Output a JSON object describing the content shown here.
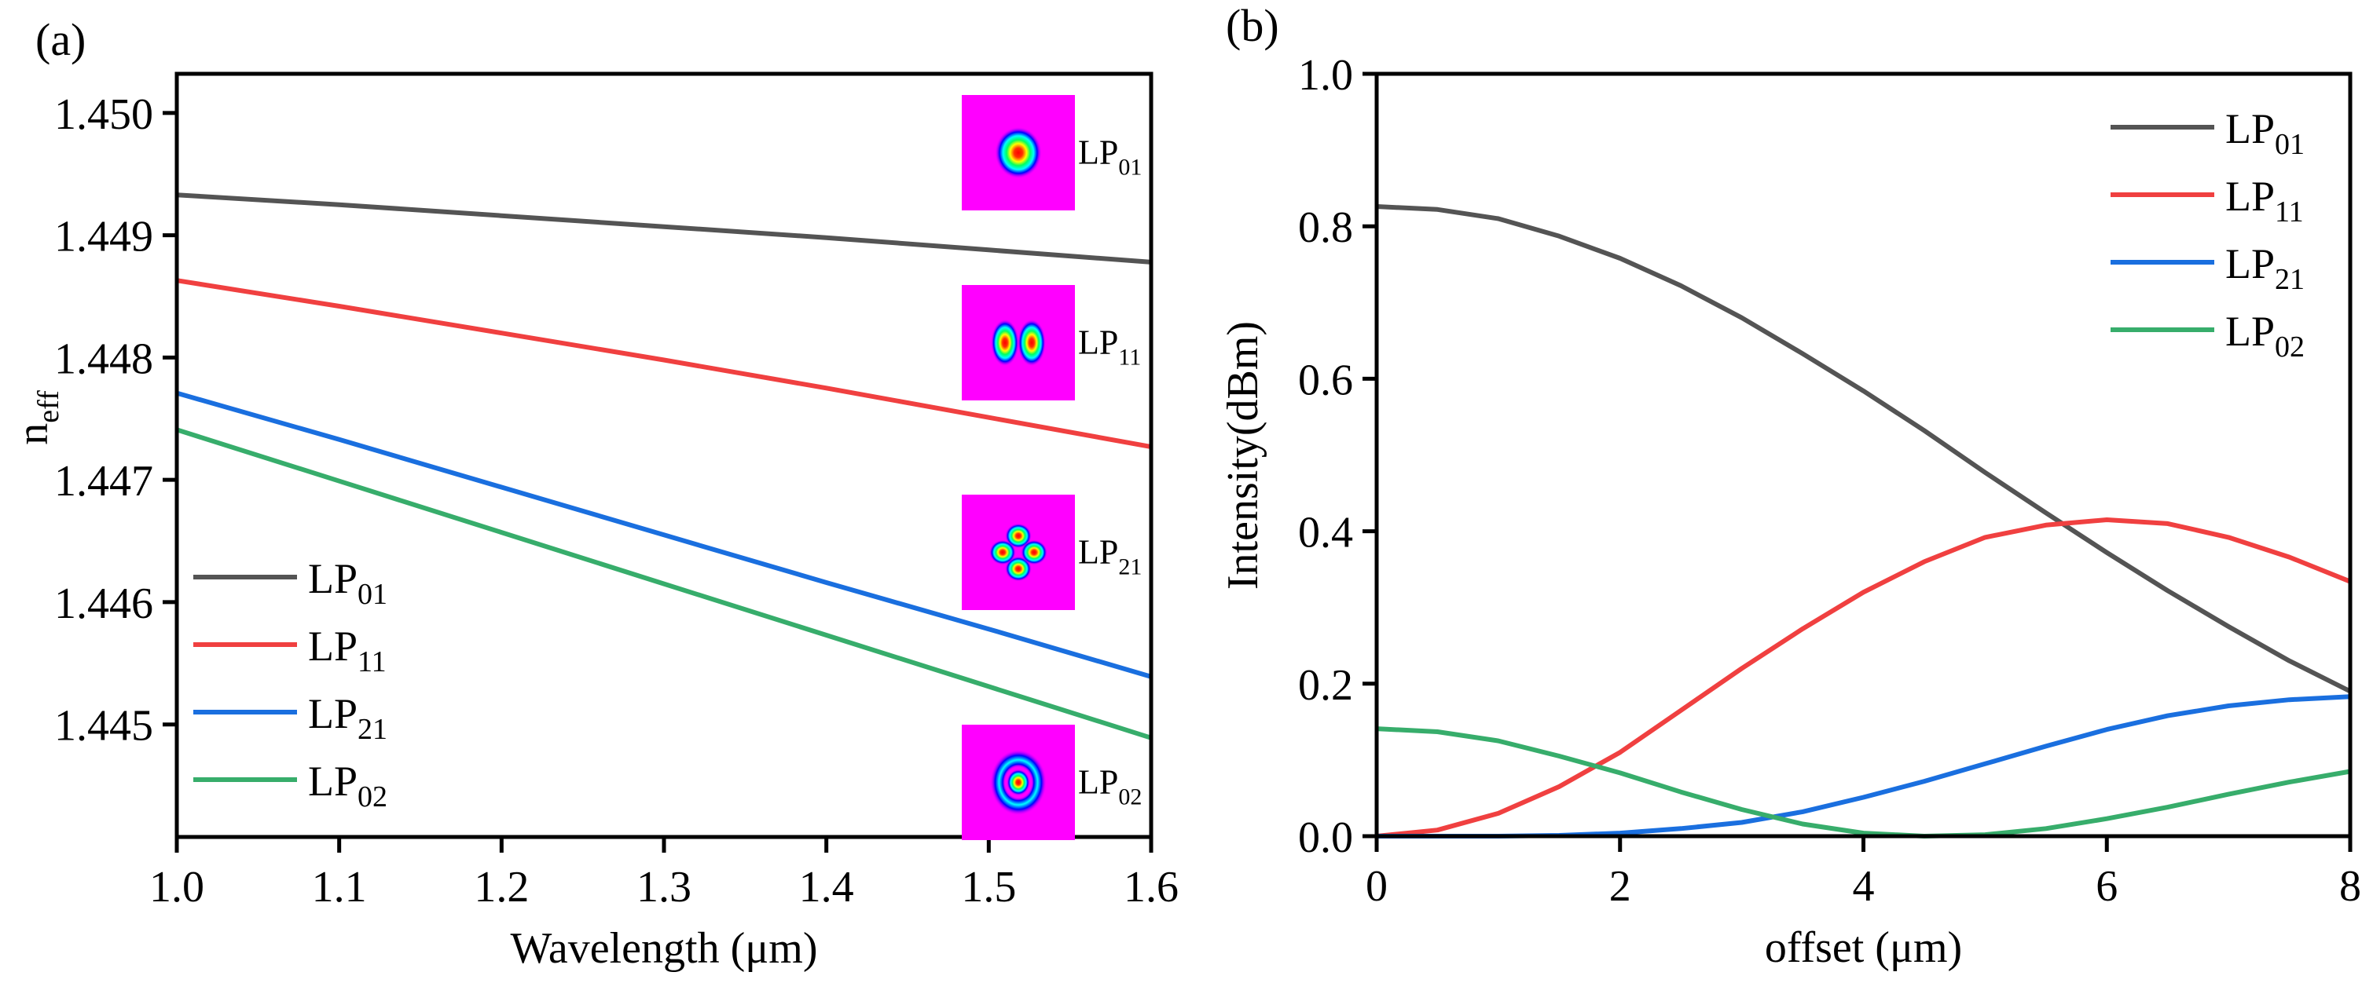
{
  "chart_data": [
    {
      "panel_label": "(a)",
      "type": "line",
      "title": "",
      "xlabel": "Wavelength (μm)",
      "ylabel": "n",
      "ylabel_sub": "eff",
      "xlim": [
        1.0,
        1.6
      ],
      "ylim": [
        1.44408,
        1.45032
      ],
      "xticks": [
        "1.0",
        "1.1",
        "1.2",
        "1.3",
        "1.4",
        "1.5",
        "1.6"
      ],
      "yticks": [
        "1.445",
        "1.446",
        "1.447",
        "1.448",
        "1.449",
        "1.450"
      ],
      "grid": false,
      "legend_position": "bottom-left",
      "x": [
        1.0,
        1.1,
        1.2,
        1.3,
        1.4,
        1.5,
        1.6
      ],
      "series": [
        {
          "name": "LP",
          "sub": "01",
          "color": "#545454",
          "values": [
            1.44933,
            1.44925,
            1.44916,
            1.44907,
            1.44898,
            1.44888,
            1.44878
          ]
        },
        {
          "name": "LP",
          "sub": "11",
          "color": "#f04040",
          "values": [
            1.44863,
            1.44842,
            1.4482,
            1.44798,
            1.44775,
            1.44751,
            1.44727
          ]
        },
        {
          "name": "LP",
          "sub": "21",
          "color": "#1a6fdf",
          "values": [
            1.44771,
            1.44733,
            1.44694,
            1.44655,
            1.44616,
            1.44578,
            1.44539
          ]
        },
        {
          "name": "LP",
          "sub": "02",
          "color": "#37ad6b",
          "values": [
            1.44741,
            1.44699,
            1.44657,
            1.44615,
            1.44573,
            1.44531,
            1.44489
          ]
        }
      ],
      "mode_insets": [
        {
          "name": "LP",
          "sub": "01",
          "pattern": "single-spot"
        },
        {
          "name": "LP",
          "sub": "11",
          "pattern": "two-lobes"
        },
        {
          "name": "LP",
          "sub": "21",
          "pattern": "four-lobes"
        },
        {
          "name": "LP",
          "sub": "02",
          "pattern": "spot-with-ring"
        }
      ]
    },
    {
      "panel_label": "(b)",
      "type": "line",
      "title": "",
      "xlabel": "offset (μm)",
      "ylabel": "Intensity(dBm)",
      "xlim": [
        0,
        8
      ],
      "ylim": [
        0,
        1.0
      ],
      "xticks": [
        "0",
        "2",
        "4",
        "6",
        "8"
      ],
      "yticks": [
        "0.0",
        "0.2",
        "0.4",
        "0.6",
        "0.8",
        "1.0"
      ],
      "grid": false,
      "legend_position": "top-right",
      "x": [
        0,
        0.5,
        1,
        1.5,
        2,
        2.5,
        3,
        3.5,
        4,
        4.5,
        5,
        5.5,
        6,
        6.5,
        7,
        7.5,
        8
      ],
      "series": [
        {
          "name": "LP",
          "sub": "01",
          "color": "#545454",
          "values": [
            0.826,
            0.822,
            0.81,
            0.787,
            0.758,
            0.722,
            0.68,
            0.633,
            0.584,
            0.532,
            0.477,
            0.424,
            0.372,
            0.322,
            0.275,
            0.23,
            0.19
          ]
        },
        {
          "name": "LP",
          "sub": "11",
          "color": "#f04040",
          "values": [
            0.0,
            0.008,
            0.03,
            0.065,
            0.11,
            0.165,
            0.22,
            0.272,
            0.32,
            0.36,
            0.392,
            0.408,
            0.415,
            0.41,
            0.392,
            0.366,
            0.334
          ]
        },
        {
          "name": "LP",
          "sub": "21",
          "color": "#1a6fdf",
          "values": [
            0.0,
            0.0,
            0.0,
            0.001,
            0.004,
            0.01,
            0.018,
            0.032,
            0.051,
            0.072,
            0.095,
            0.118,
            0.14,
            0.158,
            0.171,
            0.179,
            0.183
          ]
        },
        {
          "name": "LP",
          "sub": "02",
          "color": "#37ad6b",
          "values": [
            0.141,
            0.137,
            0.125,
            0.105,
            0.083,
            0.058,
            0.035,
            0.016,
            0.004,
            0.0,
            0.002,
            0.01,
            0.023,
            0.038,
            0.055,
            0.071,
            0.085
          ]
        }
      ]
    }
  ]
}
